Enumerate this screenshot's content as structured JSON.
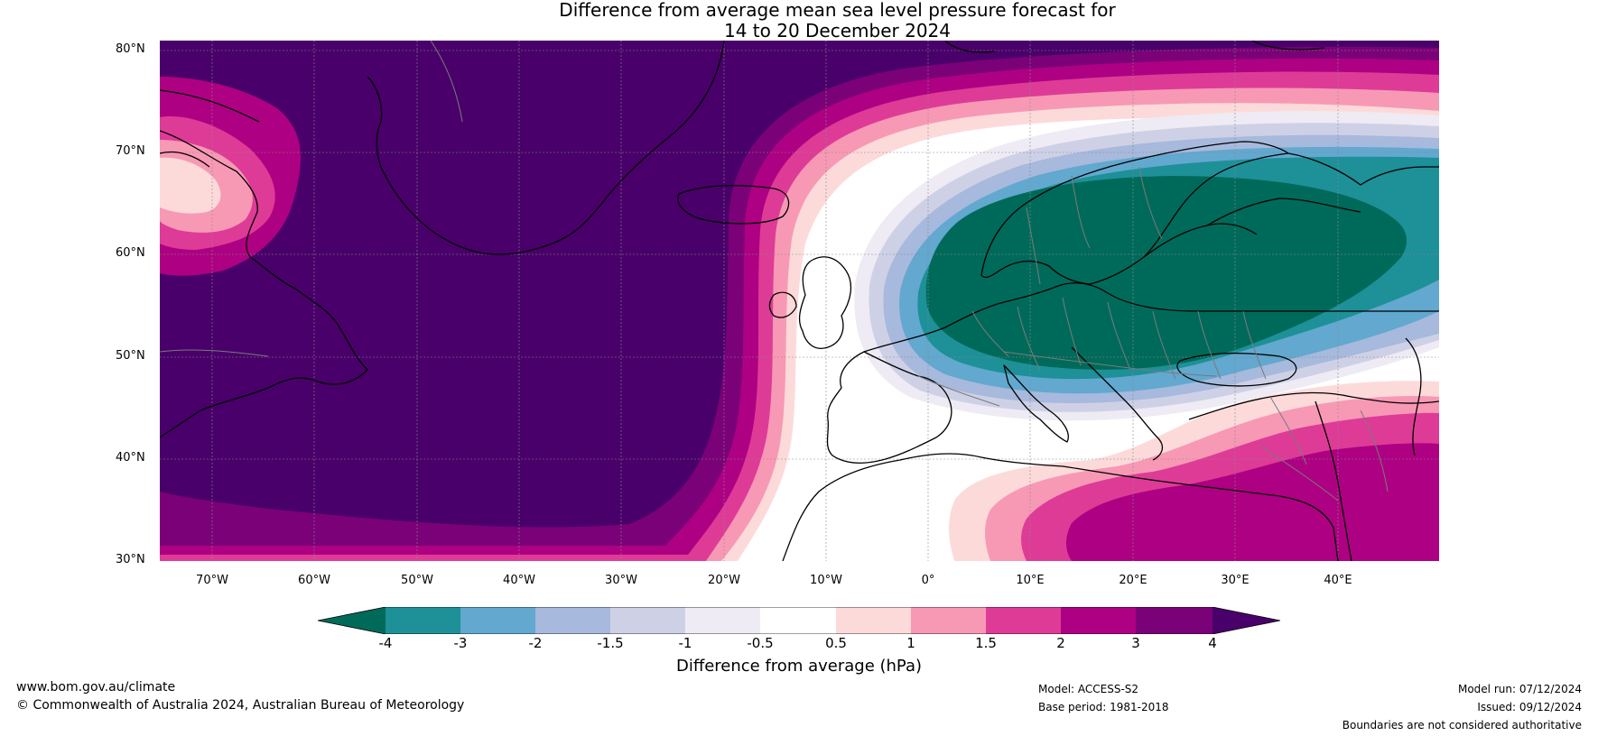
{
  "title": {
    "line1": "Difference from average mean sea level pressure forecast for",
    "line2": "14 to 20 December 2024"
  },
  "map": {
    "lat_labels": [
      "80°N",
      "70°N",
      "60°N",
      "50°N",
      "40°N",
      "30°N"
    ],
    "lon_labels": [
      "70°W",
      "60°W",
      "50°W",
      "40°W",
      "30°W",
      "20°W",
      "10°W",
      "0°",
      "10°E",
      "20°E",
      "30°E",
      "40°E"
    ],
    "lat_range": [
      30,
      81
    ],
    "lon_range": [
      -75,
      50
    ],
    "region": "North Atlantic and Europe",
    "features": [
      {
        "name": "Greenland-North Atlantic high anomaly",
        "value_class": "> 4",
        "center_lon": -40,
        "center_lat": 60
      },
      {
        "name": "Northern and Central Europe low anomaly",
        "value_class": "< -4",
        "center_lon": 15,
        "center_lat": 57
      },
      {
        "name": "Eastern Mediterranean high anomaly",
        "value_class": "2 to 3",
        "center_lon": 25,
        "center_lat": 34
      },
      {
        "name": "Baffin Island local anomaly",
        "value_class": "0.5 to 1",
        "center_lon": -70,
        "center_lat": 67
      }
    ]
  },
  "colorbar": {
    "label": "Difference from average (hPa)",
    "ticks": [
      "-4",
      "-3",
      "-2",
      "-1.5",
      "-1",
      "-0.5",
      "0.5",
      "1",
      "1.5",
      "2",
      "3",
      "4"
    ],
    "colors": {
      "lt_m4": "#006a5a",
      "m4_m3": "#1e9098",
      "m3_m2": "#62a8cf",
      "m2_m1_5": "#a7b9dc",
      "m1_5_m1": "#ced1e6",
      "m1_m0_5": "#eeebf4",
      "m0_5_0_5": "#ffffff",
      "p0_5_1": "#fddada",
      "p1_1_5": "#f799b5",
      "p1_5_2": "#de3b97",
      "p2_3": "#ae0082",
      "p3_4": "#7a0177",
      "gt_4": "#49006a"
    }
  },
  "footer": {
    "website": "www.bom.gov.au/climate",
    "copyright": "© Commonwealth of Australia 2024, Australian Bureau of Meteorology",
    "model": "Model: ACCESS-S2",
    "base_period": "Base period: 1981-2018",
    "model_run": "Model run: 07/12/2024",
    "issued": "Issued: 09/12/2024",
    "disclaimer": "Boundaries are not considered authoritative"
  }
}
